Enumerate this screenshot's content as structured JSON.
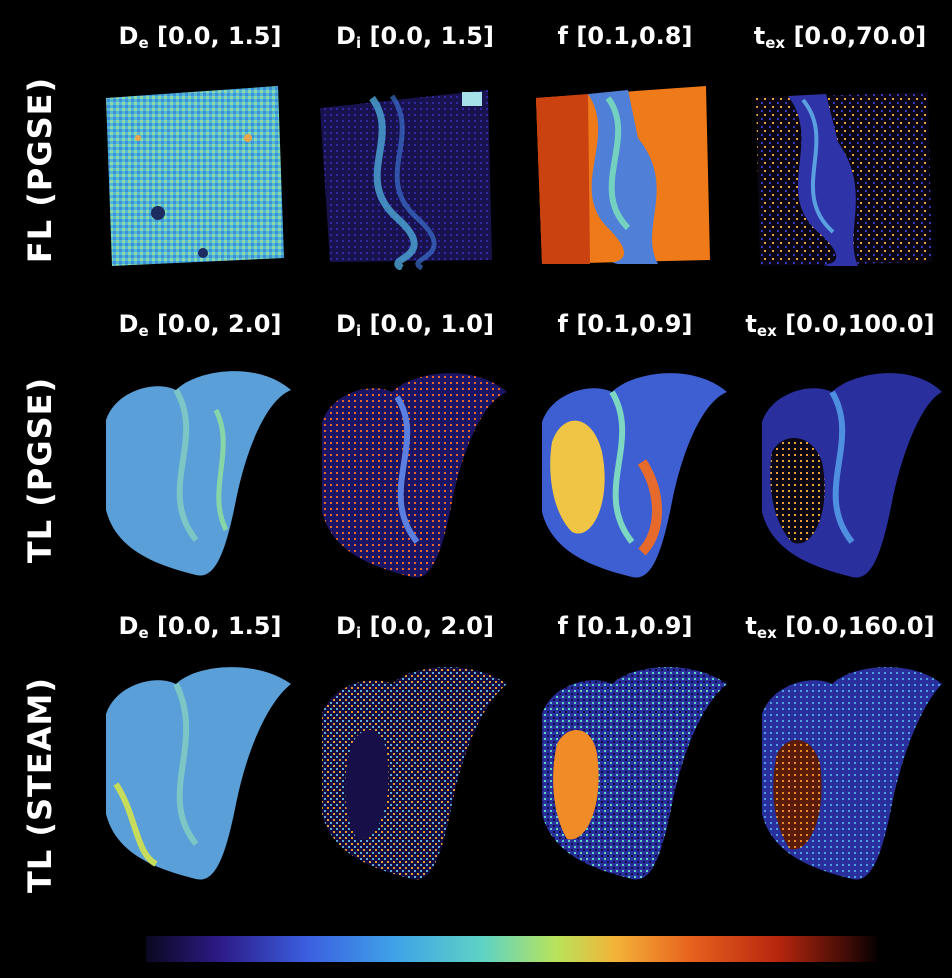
{
  "rows": [
    {
      "label": "FL (PGSE)",
      "titles": [
        {
          "sym": "D",
          "sub": "e",
          "range": "[0.0, 1.5]"
        },
        {
          "sym": "D",
          "sub": "i",
          "range": "[0.0, 1.5]"
        },
        {
          "sym": "f",
          "sub": "",
          "range": "[0.1,0.8]"
        },
        {
          "sym": "t",
          "sub": "ex",
          "range": "[0.0,70.0]"
        }
      ]
    },
    {
      "label": "TL (PGSE)",
      "titles": [
        {
          "sym": "D",
          "sub": "e",
          "range": "[0.0, 2.0]"
        },
        {
          "sym": "D",
          "sub": "i",
          "range": "[0.0, 1.0]"
        },
        {
          "sym": "f",
          "sub": "",
          "range": "[0.1,0.9]"
        },
        {
          "sym": "t",
          "sub": "ex",
          "range": "[0.0,100.0]"
        }
      ]
    },
    {
      "label": "TL (STEAM)",
      "titles": [
        {
          "sym": "D",
          "sub": "e",
          "range": "[0.0, 1.5]"
        },
        {
          "sym": "D",
          "sub": "i",
          "range": "[0.0, 2.0]"
        },
        {
          "sym": "f",
          "sub": "",
          "range": "[0.1,0.9]"
        },
        {
          "sym": "t",
          "sub": "ex",
          "range": "[0.0,160.0]"
        }
      ]
    }
  ],
  "colorbar": {
    "stops": [
      "#0a0820",
      "#2d1a86",
      "#3b5fe0",
      "#3fa3e8",
      "#5fd3c4",
      "#b9e35a",
      "#f3b338",
      "#e8631e",
      "#b8260e",
      "#3a0a05",
      "#000000"
    ]
  }
}
